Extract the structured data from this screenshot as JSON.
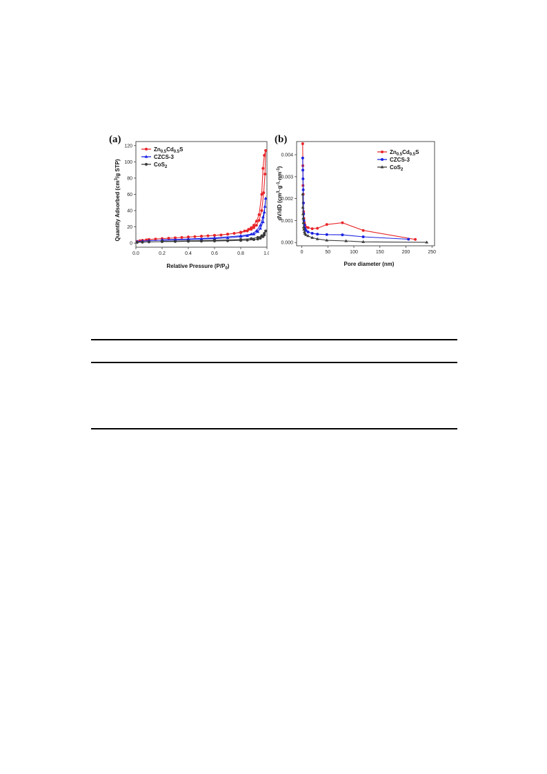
{
  "figure": {
    "panels": [
      {
        "label": "(a)",
        "xlabel": "Relative Pressure (P/P",
        "xlabel_sub": "0",
        "xlabel_end": ")",
        "ylabel": "Quantity Adsorbed (cm",
        "ylabel_sup": "3",
        "ylabel_end": "/g STP)",
        "legend": [
          {
            "base": "Zn",
            "sub1": "0.5",
            "mid": "Cd",
            "sub2": "0.5",
            "end": "S",
            "color": "#e8262a",
            "marker": "circle"
          },
          {
            "base": "CZCS-3",
            "sub1": "",
            "mid": "",
            "sub2": "",
            "end": "",
            "color": "#1a22e0",
            "marker": "triangle"
          },
          {
            "base": "CoS",
            "sub1": "2",
            "mid": "",
            "sub2": "",
            "end": "",
            "color": "#3a3a3a",
            "marker": "circle"
          }
        ],
        "x_ticks": [
          "0.0",
          "0.2",
          "0.4",
          "0.6",
          "0.8",
          "1.0"
        ],
        "y_ticks": [
          "0",
          "20",
          "40",
          "60",
          "80",
          "100",
          "120"
        ]
      },
      {
        "label": "(b)",
        "xlabel": "Pore diameter (nm)",
        "ylabel": "dV/dD (cm",
        "ylabel_sup": "3",
        "ylabel_mid": "·g",
        "ylabel_sup2": "-1",
        "ylabel_mid2": "·nm",
        "ylabel_sup3": "-1",
        "ylabel_end": ")",
        "legend": [
          {
            "base": "Zn",
            "sub1": "0.5",
            "mid": "Cd",
            "sub2": "0.5",
            "end": "S",
            "color": "#e8262a",
            "marker": "circle"
          },
          {
            "base": "CZCS-3",
            "sub1": "",
            "mid": "",
            "sub2": "",
            "end": "",
            "color": "#1a22e0",
            "marker": "circle"
          },
          {
            "base": "CoS",
            "sub1": "2",
            "mid": "",
            "sub2": "",
            "end": "",
            "color": "#3a3a3a",
            "marker": "triangle"
          }
        ],
        "x_ticks": [
          "0",
          "50",
          "100",
          "150",
          "200",
          "250"
        ],
        "y_ticks": [
          "0.000",
          "0.001",
          "0.002",
          "0.003",
          "0.004"
        ]
      }
    ]
  },
  "chart_data": [
    {
      "type": "line",
      "xlim": [
        0,
        1.0
      ],
      "ylim": [
        -5,
        125
      ],
      "grid": false,
      "legend_position": "top-left",
      "series": [
        {
          "name": "Zn0.5Cd0.5S",
          "x": [
            0.01,
            0.03,
            0.05,
            0.08,
            0.1,
            0.15,
            0.2,
            0.25,
            0.3,
            0.35,
            0.4,
            0.45,
            0.5,
            0.55,
            0.6,
            0.65,
            0.7,
            0.75,
            0.8,
            0.83,
            0.86,
            0.88,
            0.9,
            0.92,
            0.94,
            0.96,
            0.97,
            0.98,
            0.99,
            0.985,
            0.975,
            0.96,
            0.94,
            0.92,
            0.9,
            0.88,
            0.85,
            0.8,
            0.7,
            0.6,
            0.5,
            0.4,
            0.3,
            0.2,
            0.1
          ],
          "y": [
            2,
            3,
            3.5,
            4,
            4.5,
            5,
            5.5,
            6,
            6.5,
            7,
            7.5,
            8,
            8.5,
            9,
            9.5,
            10,
            11,
            12,
            13.5,
            15,
            17,
            19,
            22,
            27,
            35,
            60,
            92,
            108,
            114,
            85,
            62,
            40,
            28,
            22,
            19,
            17,
            15,
            13,
            11,
            9.5,
            8.5,
            7.5,
            6.5,
            5.5,
            4.5
          ]
        },
        {
          "name": "CZCS-3",
          "x": [
            0.01,
            0.05,
            0.1,
            0.2,
            0.3,
            0.4,
            0.5,
            0.6,
            0.7,
            0.8,
            0.85,
            0.9,
            0.93,
            0.95,
            0.97,
            0.98,
            0.99,
            0.985,
            0.97,
            0.95,
            0.92,
            0.88,
            0.8,
            0.6,
            0.4,
            0.2
          ],
          "y": [
            2,
            2.5,
            3,
            3.5,
            4,
            4.5,
            5,
            5.5,
            6.5,
            8,
            9,
            11,
            14,
            18,
            26,
            38,
            55,
            45,
            32,
            22,
            15,
            11,
            9,
            6.5,
            5,
            4
          ]
        },
        {
          "name": "CoS2",
          "x": [
            0.01,
            0.05,
            0.1,
            0.2,
            0.3,
            0.4,
            0.5,
            0.6,
            0.7,
            0.8,
            0.85,
            0.9,
            0.93,
            0.95,
            0.97,
            0.98,
            0.99,
            0.98,
            0.96,
            0.93,
            0.88,
            0.8,
            0.6,
            0.4,
            0.2
          ],
          "y": [
            1,
            1.2,
            1.5,
            1.8,
            2,
            2.2,
            2.4,
            2.6,
            2.9,
            3.3,
            3.7,
            4.3,
            5,
            6,
            8,
            10,
            15,
            12,
            9,
            7,
            5.5,
            4.5,
            3.5,
            2.8,
            2.2
          ]
        }
      ]
    },
    {
      "type": "line",
      "xlim": [
        -10,
        255
      ],
      "ylim": [
        -0.00015,
        0.0046
      ],
      "grid": false,
      "legend_position": "top-right",
      "series": [
        {
          "name": "Zn0.5Cd0.5S",
          "x": [
            1.7,
            2,
            2.3,
            2.7,
            3,
            3.5,
            4,
            5,
            6,
            8,
            12,
            20,
            30,
            48,
            78,
            118,
            218
          ],
          "y": [
            0.0045,
            0.0035,
            0.0026,
            0.0022,
            0.0018,
            0.0014,
            0.0011,
            0.0009,
            0.0008,
            0.0007,
            0.00068,
            0.00063,
            0.00065,
            0.00082,
            0.0009,
            0.00055,
            0.00014
          ]
        },
        {
          "name": "CZCS-3",
          "x": [
            1.7,
            2,
            2.3,
            2.7,
            3,
            3.5,
            4,
            5,
            6,
            8,
            12,
            20,
            30,
            48,
            78,
            118,
            205
          ],
          "y": [
            0.00385,
            0.0033,
            0.0029,
            0.0024,
            0.0018,
            0.0013,
            0.001,
            0.0008,
            0.00065,
            0.00055,
            0.00048,
            0.00042,
            0.00038,
            0.00036,
            0.00035,
            0.00026,
            0.00015
          ]
        },
        {
          "name": "CoS2",
          "x": [
            1.7,
            2,
            2.3,
            2.7,
            3,
            3.5,
            4,
            5,
            6,
            8,
            12,
            20,
            30,
            48,
            85,
            118,
            240
          ],
          "y": [
            0.0022,
            0.0016,
            0.0013,
            0.0011,
            0.0009,
            0.0007,
            0.0006,
            0.00048,
            0.0004,
            0.00035,
            0.0003,
            0.00022,
            0.00016,
            0.0001,
            7e-05,
            3e-05,
            1e-05
          ]
        }
      ]
    }
  ]
}
